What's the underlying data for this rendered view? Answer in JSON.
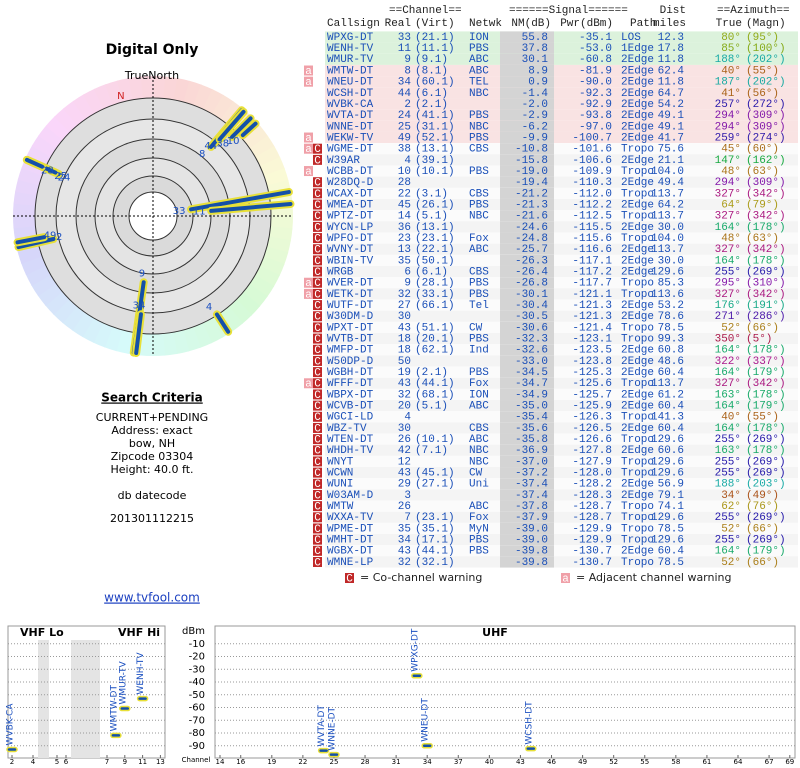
{
  "report": {
    "title": "Digital Only",
    "true_north": "TrueNorth",
    "north": "N",
    "criteria": {
      "heading": "Search Criteria",
      "lines": [
        "CURRENT+PENDING",
        "Address: exact",
        "bow, NH",
        "Zipcode 03304",
        "Height: 40.0 ft.",
        "db datecode",
        "201301112215"
      ]
    },
    "link": "www.tvfool.com"
  },
  "table": {
    "header_top": [
      "==Channel==",
      "======Signal======",
      "Dist",
      "==Azimuth=="
    ],
    "header": [
      "Callsign",
      "Real",
      "(Virt)",
      "Netwk",
      "NM(dB)",
      "Pwr(dBm)",
      "Path",
      "miles",
      "True",
      "(Magn)"
    ],
    "rows": [
      [
        [],
        "WPXG-DT",
        "33",
        "(21.1)",
        "ION",
        "55.8",
        "-35.1",
        "LOS",
        "12.3",
        "80°",
        "(95°)"
      ],
      [
        [],
        "WENH-TV",
        "11",
        "(11.1)",
        "PBS",
        "37.8",
        "-53.0",
        "1Edge",
        "17.8",
        "85°",
        "(100°)"
      ],
      [
        [],
        "WMUR-TV",
        "9",
        "(9.1)",
        "ABC",
        "30.1",
        "-60.8",
        "2Edge",
        "11.8",
        "188°",
        "(202°)"
      ],
      [
        [
          "a"
        ],
        "WMTW-DT",
        "8",
        "(8.1)",
        "ABC",
        "8.9",
        "-81.9",
        "2Edge",
        "62.4",
        "40°",
        "(55°)"
      ],
      [
        [
          "a"
        ],
        "WNEU-DT",
        "34",
        "(60.1)",
        "TEL",
        "0.9",
        "-90.0",
        "2Edge",
        "11.8",
        "187°",
        "(202°)"
      ],
      [
        [],
        "WCSH-DT",
        "44",
        "(6.1)",
        "NBC",
        "-1.4",
        "-92.3",
        "2Edge",
        "64.7",
        "41°",
        "(56°)"
      ],
      [
        [],
        "WVBK-CA",
        "2",
        "(2.1)",
        null,
        "-2.0",
        "-92.9",
        "2Edge",
        "54.2",
        "257°",
        "(272°)"
      ],
      [
        [],
        "WVTA-DT",
        "24",
        "(41.1)",
        "PBS",
        "-2.9",
        "-93.8",
        "2Edge",
        "49.1",
        "294°",
        "(309°)"
      ],
      [
        [],
        "WNNE-DT",
        "25",
        "(31.1)",
        "NBC",
        "-6.2",
        "-97.0",
        "2Edge",
        "49.1",
        "294°",
        "(309°)"
      ],
      [
        [
          "a"
        ],
        "WEKW-TV",
        "49",
        "(52.1)",
        "PBS",
        "-9.9",
        "-100.7",
        "2Edge",
        "41.7",
        "259°",
        "(274°)"
      ],
      [
        [
          "a",
          "C"
        ],
        "WGME-DT",
        "38",
        "(13.1)",
        "CBS",
        "-10.8",
        "-101.6",
        "Tropo",
        "75.6",
        "45°",
        "(60°)"
      ],
      [
        [
          "C"
        ],
        "W39AR",
        "4",
        "(39.1)",
        null,
        "-15.8",
        "-106.6",
        "2Edge",
        "21.1",
        "147°",
        "(162°)"
      ],
      [
        [
          "a"
        ],
        "WCBB-DT",
        "10",
        "(10.1)",
        "PBS",
        "-19.0",
        "-109.9",
        "Tropo",
        "104.0",
        "48°",
        "(63°)"
      ],
      [
        [
          "C"
        ],
        "W28DQ-D",
        "28",
        null,
        null,
        "-19.4",
        "-110.3",
        "2Edge",
        "49.4",
        "294°",
        "(309°)"
      ],
      [
        [
          "C"
        ],
        "WCAX-DT",
        "22",
        "(3.1)",
        "CBS",
        "-21.2",
        "-112.0",
        "Tropo",
        "113.7",
        "327°",
        "(342°)"
      ],
      [
        [
          "C"
        ],
        "WMEA-DT",
        "45",
        "(26.1)",
        "PBS",
        "-21.3",
        "-112.2",
        "2Edge",
        "64.2",
        "64°",
        "(79°)"
      ],
      [
        [
          "C"
        ],
        "WPTZ-DT",
        "14",
        "(5.1)",
        "NBC",
        "-21.6",
        "-112.5",
        "Tropo",
        "113.7",
        "327°",
        "(342°)"
      ],
      [
        [
          "C"
        ],
        "WYCN-LP",
        "36",
        "(13.1)",
        null,
        "-24.6",
        "-115.5",
        "2Edge",
        "30.0",
        "164°",
        "(178°)"
      ],
      [
        [
          "C"
        ],
        "WPFO-DT",
        "23",
        "(23.1)",
        "Fox",
        "-24.8",
        "-115.6",
        "Tropo",
        "104.0",
        "48°",
        "(63°)"
      ],
      [
        [
          "C"
        ],
        "WVNY-DT",
        "13",
        "(22.1)",
        "ABC",
        "-25.7",
        "-116.6",
        "2Edge",
        "113.7",
        "327°",
        "(342°)"
      ],
      [
        [
          "C"
        ],
        "WBIN-TV",
        "35",
        "(50.1)",
        null,
        "-26.3",
        "-117.1",
        "2Edge",
        "30.0",
        "164°",
        "(178°)"
      ],
      [
        [
          "C"
        ],
        "WRGB",
        "6",
        "(6.1)",
        "CBS",
        "-26.4",
        "-117.2",
        "2Edge",
        "129.6",
        "255°",
        "(269°)"
      ],
      [
        [
          "a",
          "C"
        ],
        "WVER-DT",
        "9",
        "(28.1)",
        "PBS",
        "-26.8",
        "-117.7",
        "Tropo",
        "85.3",
        "295°",
        "(310°)"
      ],
      [
        [
          "a",
          "C"
        ],
        "WETK-DT",
        "32",
        "(33.1)",
        "PBS",
        "-30.1",
        "-121.1",
        "Tropo",
        "113.6",
        "327°",
        "(342°)"
      ],
      [
        [
          "C"
        ],
        "WUTF-DT",
        "27",
        "(66.1)",
        "Tel",
        "-30.4",
        "-121.3",
        "2Edge",
        "53.2",
        "176°",
        "(191°)"
      ],
      [
        [
          "C"
        ],
        "W30DM-D",
        "30",
        null,
        null,
        "-30.5",
        "-121.3",
        "2Edge",
        "78.6",
        "271°",
        "(286°)"
      ],
      [
        [
          "C"
        ],
        "WPXT-DT",
        "43",
        "(51.1)",
        "CW",
        "-30.6",
        "-121.4",
        "Tropo",
        "78.5",
        "52°",
        "(66°)"
      ],
      [
        [
          "C"
        ],
        "WVTB-DT",
        "18",
        "(20.1)",
        "PBS",
        "-32.3",
        "-123.1",
        "Tropo",
        "99.3",
        "350°",
        "(5°)"
      ],
      [
        [
          "C"
        ],
        "WMFP-DT",
        "18",
        "(62.1)",
        "Ind",
        "-32.6",
        "-123.5",
        "2Edge",
        "60.8",
        "164°",
        "(178°)"
      ],
      [
        [
          "C"
        ],
        "W50DP-D",
        "50",
        null,
        null,
        "-33.0",
        "-123.8",
        "2Edge",
        "48.6",
        "322°",
        "(337°)"
      ],
      [
        [
          "C"
        ],
        "WGBH-DT",
        "19",
        "(2.1)",
        "PBS",
        "-34.5",
        "-125.3",
        "2Edge",
        "60.4",
        "164°",
        "(179°)"
      ],
      [
        [
          "a",
          "C"
        ],
        "WFFF-DT",
        "43",
        "(44.1)",
        "Fox",
        "-34.7",
        "-125.6",
        "Tropo",
        "113.7",
        "327°",
        "(342°)"
      ],
      [
        [
          "C"
        ],
        "WBPX-DT",
        "32",
        "(68.1)",
        "ION",
        "-34.9",
        "-125.7",
        "2Edge",
        "61.2",
        "163°",
        "(178°)"
      ],
      [
        [
          "C"
        ],
        "WCVB-DT",
        "20",
        "(5.1)",
        "ABC",
        "-35.0",
        "-125.9",
        "2Edge",
        "60.4",
        "164°",
        "(179°)"
      ],
      [
        [
          "C"
        ],
        "WGCI-LD",
        "4",
        null,
        null,
        "-35.4",
        "-126.3",
        "Tropo",
        "141.3",
        "40°",
        "(55°)"
      ],
      [
        [
          "C"
        ],
        "WBZ-TV",
        "30",
        null,
        "CBS",
        "-35.6",
        "-126.5",
        "2Edge",
        "60.4",
        "164°",
        "(178°)"
      ],
      [
        [
          "C"
        ],
        "WTEN-DT",
        "26",
        "(10.1)",
        "ABC",
        "-35.8",
        "-126.6",
        "Tropo",
        "129.6",
        "255°",
        "(269°)"
      ],
      [
        [
          "C"
        ],
        "WHDH-TV",
        "42",
        "(7.1)",
        "NBC",
        "-36.9",
        "-127.8",
        "2Edge",
        "60.6",
        "163°",
        "(178°)"
      ],
      [
        [
          "C"
        ],
        "WNYT",
        "12",
        null,
        "NBC",
        "-37.0",
        "-127.9",
        "Tropo",
        "129.6",
        "255°",
        "(269°)"
      ],
      [
        [
          "C"
        ],
        "WCWN",
        "43",
        "(45.1)",
        "CW",
        "-37.2",
        "-128.0",
        "Tropo",
        "129.6",
        "255°",
        "(269°)"
      ],
      [
        [
          "C"
        ],
        "WUNI",
        "29",
        "(27.1)",
        "Uni",
        "-37.4",
        "-128.2",
        "2Edge",
        "56.9",
        "188°",
        "(203°)"
      ],
      [
        [
          "C"
        ],
        "W03AM-D",
        "3",
        null,
        null,
        "-37.4",
        "-128.3",
        "2Edge",
        "79.1",
        "34°",
        "(49°)"
      ],
      [
        [
          "C"
        ],
        "WMTW",
        "26",
        null,
        "ABC",
        "-37.8",
        "-128.7",
        "Tropo",
        "74.1",
        "62°",
        "(76°)"
      ],
      [
        [
          "C"
        ],
        "WXXA-TV",
        "7",
        "(23.1)",
        "Fox",
        "-37.9",
        "-128.7",
        "Tropo",
        "129.6",
        "255°",
        "(269°)"
      ],
      [
        [
          "C"
        ],
        "WPME-DT",
        "35",
        "(35.1)",
        "MyN",
        "-39.0",
        "-129.9",
        "Tropo",
        "78.5",
        "52°",
        "(66°)"
      ],
      [
        [
          "C"
        ],
        "WMHT-DT",
        "34",
        "(17.1)",
        "PBS",
        "-39.0",
        "-129.9",
        "Tropo",
        "129.6",
        "255°",
        "(269°)"
      ],
      [
        [
          "C"
        ],
        "WGBX-DT",
        "43",
        "(44.1)",
        "PBS",
        "-39.8",
        "-130.7",
        "2Edge",
        "60.4",
        "164°",
        "(179°)"
      ],
      [
        [
          "C"
        ],
        "WMNE-LP",
        "32",
        "(32.1)",
        null,
        "-39.8",
        "-130.7",
        "Tropo",
        "78.5",
        "52°",
        "(66°)"
      ]
    ]
  },
  "legend": [
    {
      "icon": "C",
      "text": "= Co-channel warning"
    },
    {
      "icon": "a",
      "text": "= Adjacent channel warning"
    }
  ],
  "spectrum": {
    "bands": [
      "VHF Lo",
      "VHF Hi",
      "UHF"
    ],
    "y_label": "dBm",
    "x_label": "Channel",
    "ylim": [
      -100,
      0
    ],
    "yticks": [
      -10,
      -20,
      -30,
      -40,
      -50,
      -60,
      -70,
      -80,
      -90
    ],
    "xticks": [
      2,
      4,
      5,
      6,
      7,
      9,
      11,
      13,
      14,
      16,
      19,
      22,
      25,
      28,
      31,
      34,
      37,
      40,
      43,
      46,
      49,
      52,
      55,
      58,
      61,
      64,
      67,
      69
    ]
  }
}
